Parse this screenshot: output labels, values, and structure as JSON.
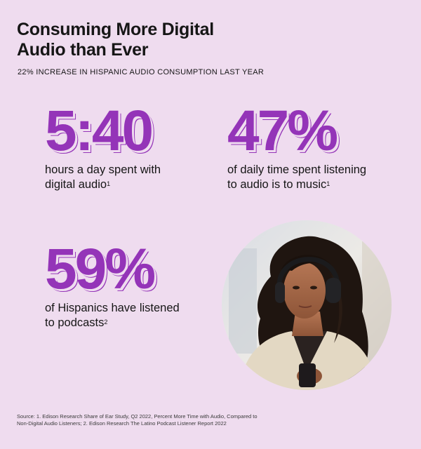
{
  "header": {
    "title_line1": "Consuming More Digital",
    "title_line2": "Audio than Ever",
    "subtitle": "22% INCREASE IN HISPANIC AUDIO CONSUMPTION LAST YEAR"
  },
  "stats": [
    {
      "value": "5:40",
      "line1": "hours a day spent with",
      "line2": "digital audio",
      "footnote": "1"
    },
    {
      "value": "47%",
      "line1": "of daily time spent listening",
      "line2": "to audio is to music",
      "footnote": "1"
    },
    {
      "value": "59%",
      "line1": "of Hispanics have listened",
      "line2": "to podcasts",
      "footnote": "2"
    }
  ],
  "photo": {
    "icon": "woman-with-headphones-photo"
  },
  "source": {
    "line1": "Source: 1. Edison Research Share of Ear Study, Q2 2022, Percent More Time with Audio, Compared to",
    "line2": "Non-Digital Audio Listeners; 2. Edison Research The Latino Podcast Listener Report 2022"
  },
  "colors": {
    "background": "#efdcef",
    "accent": "#9434b8",
    "text": "#161616"
  }
}
